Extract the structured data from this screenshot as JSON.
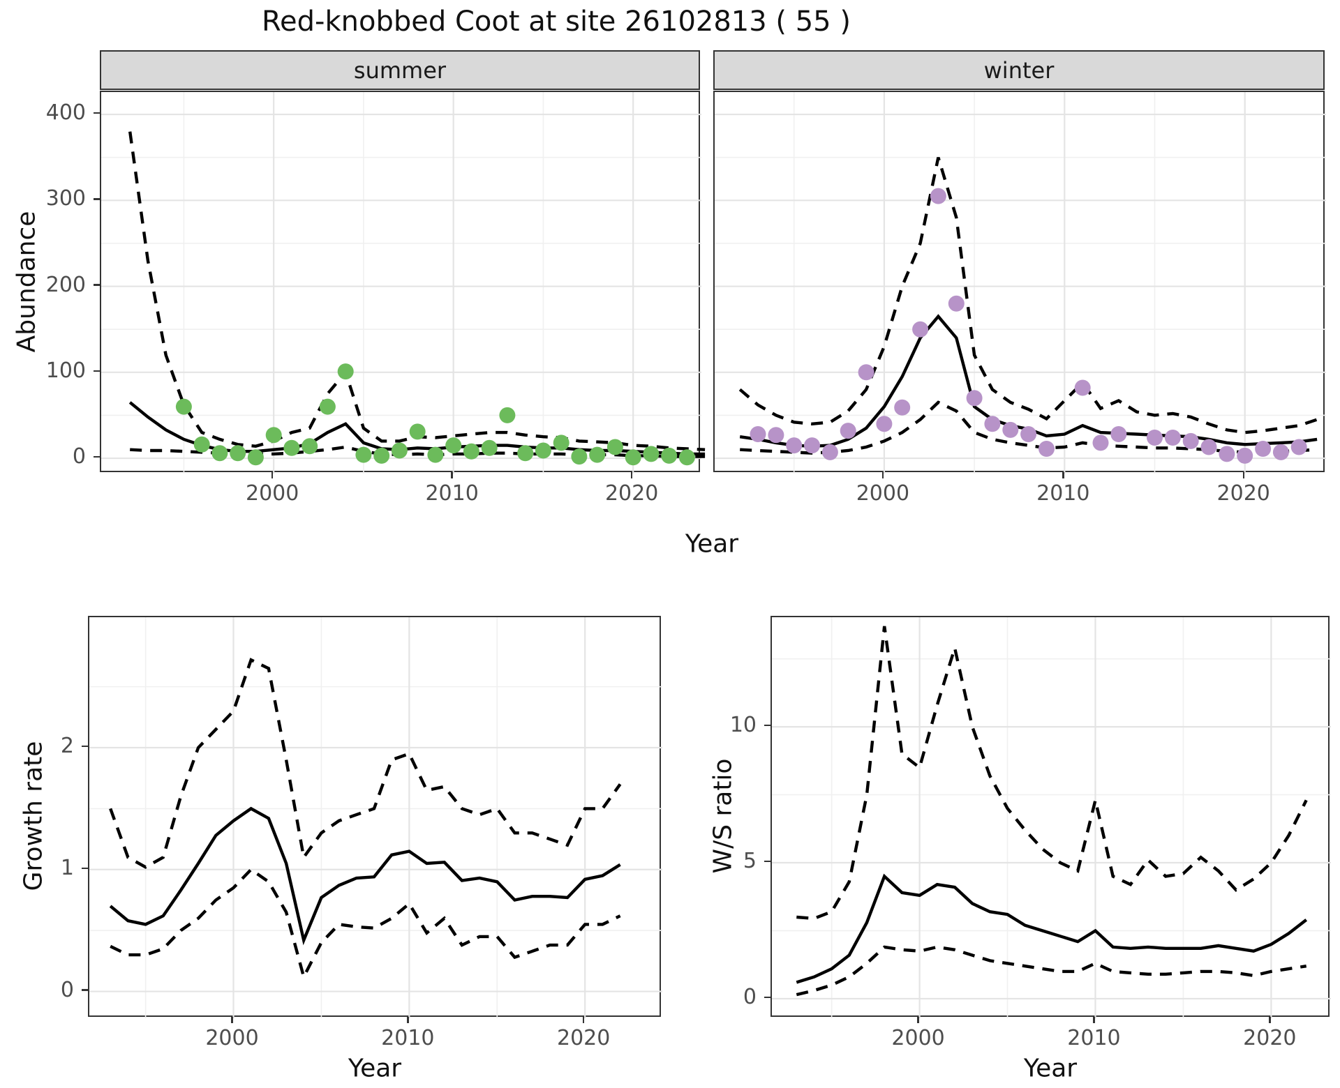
{
  "title": "Red-knobbed Coot at site 26102813 ( 55 )",
  "figure": {
    "top": {
      "facets": [
        {
          "label": "summer"
        },
        {
          "label": "winter"
        }
      ],
      "ylabel": "Abundance",
      "xlabel": "Year"
    },
    "bottom_left": {
      "ylabel": "Growth rate",
      "xlabel": "Year"
    },
    "bottom_right": {
      "ylabel": "W/S ratio",
      "xlabel": "Year"
    }
  },
  "colors": {
    "summer_point": "#6cbb5b",
    "winter_point": "#b793c8",
    "line": "#000000",
    "strip_bg": "#d9d9d9",
    "panel_border": "#333333",
    "grid_major": "#e4e4e4",
    "grid_minor": "#f0f0f0",
    "axis_text": "#4d4d4d"
  },
  "chart_data": [
    {
      "type": "line",
      "facet": "summer",
      "ylabel": "Abundance",
      "xlabel": "Year",
      "xlim": [
        1990.4,
        2023.8
      ],
      "ylim": [
        -17.8,
        426
      ],
      "xticks": [
        2000,
        2010,
        2020
      ],
      "yticks": [
        0,
        100,
        200,
        300,
        400
      ],
      "minor_x": [
        1995,
        2005,
        2015
      ],
      "minor_y": [
        50,
        150,
        250,
        350
      ],
      "line_years": [
        1992,
        1993,
        1994,
        1995,
        1996,
        1997,
        1998,
        1999,
        2000,
        2001,
        2002,
        2003,
        2004,
        2005,
        2006,
        2007,
        2008,
        2009,
        2010,
        2011,
        2012,
        2013,
        2014,
        2015,
        2016,
        2017,
        2018,
        2019,
        2020,
        2021,
        2022,
        2023,
        2024
      ],
      "mean": [
        65,
        48,
        33,
        22,
        15,
        10,
        8,
        8,
        10,
        12,
        17,
        30,
        40,
        18,
        11,
        10,
        12,
        11,
        13,
        14,
        15,
        15,
        13,
        12,
        12,
        10,
        9,
        9,
        8,
        7,
        6,
        5,
        5
      ],
      "lower": [
        10,
        9,
        9,
        8,
        7,
        6,
        5,
        5,
        5,
        6,
        8,
        10,
        13,
        8,
        5,
        4,
        5,
        4,
        5,
        5,
        6,
        6,
        5,
        5,
        5,
        4,
        4,
        4,
        3,
        3,
        2,
        2,
        2
      ],
      "upper": [
        380,
        230,
        120,
        62,
        30,
        22,
        16,
        14,
        20,
        30,
        35,
        75,
        100,
        35,
        20,
        20,
        25,
        24,
        26,
        28,
        30,
        30,
        27,
        25,
        24,
        20,
        19,
        18,
        15,
        14,
        12,
        11,
        10
      ],
      "point_years": [
        1995,
        1996,
        1997,
        1998,
        1999,
        2000,
        2001,
        2002,
        2003,
        2004,
        2005,
        2006,
        2007,
        2008,
        2009,
        2010,
        2011,
        2012,
        2013,
        2014,
        2015,
        2016,
        2017,
        2018,
        2019,
        2020,
        2021,
        2022,
        2023
      ],
      "point_values": [
        60,
        16,
        6,
        6,
        1,
        27,
        12,
        14,
        60,
        101,
        4,
        3,
        9,
        31,
        4,
        15,
        8,
        12,
        50,
        6,
        9,
        18,
        2,
        4,
        13,
        1,
        5,
        3,
        1
      ]
    },
    {
      "type": "line",
      "facet": "winter",
      "ylabel": "Abundance",
      "xlabel": "Year",
      "xlim": [
        1990.6,
        2024.5
      ],
      "ylim": [
        -17.8,
        426
      ],
      "xticks": [
        2000,
        2010,
        2020
      ],
      "yticks": [
        0,
        100,
        200,
        300,
        400
      ],
      "minor_x": [
        1995,
        2005,
        2015
      ],
      "minor_y": [
        50,
        150,
        250,
        350
      ],
      "line_years": [
        1992,
        1993,
        1994,
        1995,
        1996,
        1997,
        1998,
        1999,
        2000,
        2001,
        2002,
        2003,
        2004,
        2005,
        2006,
        2007,
        2008,
        2009,
        2010,
        2011,
        2012,
        2013,
        2014,
        2015,
        2016,
        2017,
        2018,
        2019,
        2020,
        2021,
        2022,
        2023,
        2024
      ],
      "mean": [
        25,
        22,
        18,
        15,
        14,
        15,
        22,
        35,
        60,
        95,
        140,
        165,
        140,
        60,
        45,
        38,
        34,
        26,
        28,
        38,
        30,
        29,
        28,
        27,
        26,
        25,
        22,
        18,
        16,
        17,
        18,
        19,
        22
      ],
      "lower": [
        10,
        9,
        8,
        7,
        6,
        7,
        9,
        13,
        20,
        30,
        45,
        65,
        55,
        30,
        22,
        18,
        15,
        12,
        13,
        18,
        15,
        14,
        13,
        12,
        12,
        11,
        10,
        8,
        7,
        8,
        8,
        9,
        10
      ],
      "upper": [
        80,
        62,
        50,
        42,
        40,
        42,
        55,
        80,
        130,
        200,
        250,
        350,
        280,
        120,
        80,
        65,
        57,
        46,
        67,
        88,
        58,
        67,
        54,
        50,
        52,
        48,
        40,
        33,
        30,
        32,
        35,
        38,
        45
      ],
      "point_years": [
        1993,
        1994,
        1995,
        1996,
        1997,
        1998,
        1999,
        2000,
        2001,
        2002,
        2003,
        2004,
        2005,
        2006,
        2007,
        2008,
        2009,
        2011,
        2012,
        2013,
        2015,
        2016,
        2017,
        2018,
        2019,
        2020,
        2021,
        2022,
        2023
      ],
      "point_values": [
        28,
        27,
        15,
        15,
        7,
        32,
        100,
        40,
        59,
        150,
        305,
        180,
        70,
        40,
        33,
        28,
        11,
        82,
        18,
        28,
        24,
        24,
        20,
        13,
        5,
        3,
        11,
        7,
        13
      ]
    },
    {
      "type": "line",
      "facet": "growth_rate",
      "ylabel": "Growth rate",
      "xlabel": "Year",
      "xlim": [
        1991.8,
        2024.4
      ],
      "ylim": [
        -0.22,
        3.07
      ],
      "xticks": [
        2000,
        2010,
        2020
      ],
      "yticks": [
        0,
        1,
        2
      ],
      "minor_x": [
        1995,
        2005,
        2015
      ],
      "minor_y": [
        0.5,
        1.5,
        2.5
      ],
      "line_years": [
        1993,
        1994,
        1995,
        1996,
        1997,
        1998,
        1999,
        2000,
        2001,
        2002,
        2003,
        2004,
        2005,
        2006,
        2007,
        2008,
        2009,
        2010,
        2011,
        2012,
        2013,
        2014,
        2015,
        2016,
        2017,
        2018,
        2019,
        2020,
        2021,
        2022
      ],
      "mean": [
        0.7,
        0.58,
        0.55,
        0.62,
        0.83,
        1.05,
        1.28,
        1.4,
        1.5,
        1.42,
        1.05,
        0.42,
        0.77,
        0.87,
        0.93,
        0.94,
        1.12,
        1.15,
        1.05,
        1.06,
        0.91,
        0.93,
        0.9,
        0.75,
        0.78,
        0.78,
        0.77,
        0.92,
        0.95,
        1.04
      ],
      "lower": [
        0.37,
        0.3,
        0.3,
        0.35,
        0.5,
        0.6,
        0.75,
        0.85,
        1.0,
        0.9,
        0.65,
        0.12,
        0.4,
        0.55,
        0.53,
        0.52,
        0.6,
        0.72,
        0.48,
        0.6,
        0.38,
        0.45,
        0.45,
        0.28,
        0.33,
        0.38,
        0.38,
        0.55,
        0.55,
        0.62
      ],
      "upper": [
        1.5,
        1.1,
        1.02,
        1.1,
        1.6,
        2.0,
        2.15,
        2.3,
        2.72,
        2.65,
        1.9,
        1.1,
        1.3,
        1.4,
        1.45,
        1.5,
        1.9,
        1.95,
        1.65,
        1.68,
        1.5,
        1.45,
        1.5,
        1.3,
        1.3,
        1.25,
        1.2,
        1.5,
        1.5,
        1.7
      ],
      "point_years": [],
      "point_values": []
    },
    {
      "type": "line",
      "facet": "ws_ratio",
      "ylabel": "W/S ratio",
      "xlabel": "Year",
      "xlim": [
        1991.6,
        2023.4
      ],
      "ylim": [
        -0.72,
        14.03
      ],
      "xticks": [
        2000,
        2010,
        2020
      ],
      "yticks": [
        0,
        5,
        10
      ],
      "minor_x": [
        1995,
        2005,
        2015
      ],
      "minor_y": [
        2.5,
        7.5,
        12.5
      ],
      "line_years": [
        1993,
        1994,
        1995,
        1996,
        1997,
        1998,
        1999,
        2000,
        2001,
        2002,
        2003,
        2004,
        2005,
        2006,
        2007,
        2008,
        2009,
        2010,
        2011,
        2012,
        2013,
        2014,
        2015,
        2016,
        2017,
        2018,
        2019,
        2020,
        2021,
        2022
      ],
      "mean": [
        0.6,
        0.8,
        1.1,
        1.6,
        2.8,
        4.5,
        3.9,
        3.8,
        4.2,
        4.1,
        3.5,
        3.2,
        3.1,
        2.7,
        2.5,
        2.3,
        2.1,
        2.5,
        1.9,
        1.85,
        1.9,
        1.85,
        1.85,
        1.85,
        1.95,
        1.85,
        1.75,
        2.0,
        2.4,
        2.9
      ],
      "lower": [
        0.15,
        0.3,
        0.5,
        0.8,
        1.3,
        1.9,
        1.8,
        1.75,
        1.9,
        1.8,
        1.6,
        1.4,
        1.3,
        1.2,
        1.1,
        1.0,
        1.0,
        1.3,
        1.0,
        0.95,
        0.9,
        0.9,
        0.95,
        1.0,
        1.0,
        0.95,
        0.85,
        1.0,
        1.1,
        1.2
      ],
      "upper": [
        3.0,
        2.95,
        3.2,
        4.3,
        7.5,
        13.7,
        9.0,
        8.5,
        10.8,
        12.9,
        10.0,
        8.2,
        7.0,
        6.2,
        5.5,
        5.0,
        4.7,
        7.3,
        4.5,
        4.2,
        5.1,
        4.5,
        4.6,
        5.2,
        4.7,
        4.0,
        4.4,
        5.0,
        6.0,
        7.3
      ],
      "point_years": [],
      "point_values": []
    }
  ]
}
